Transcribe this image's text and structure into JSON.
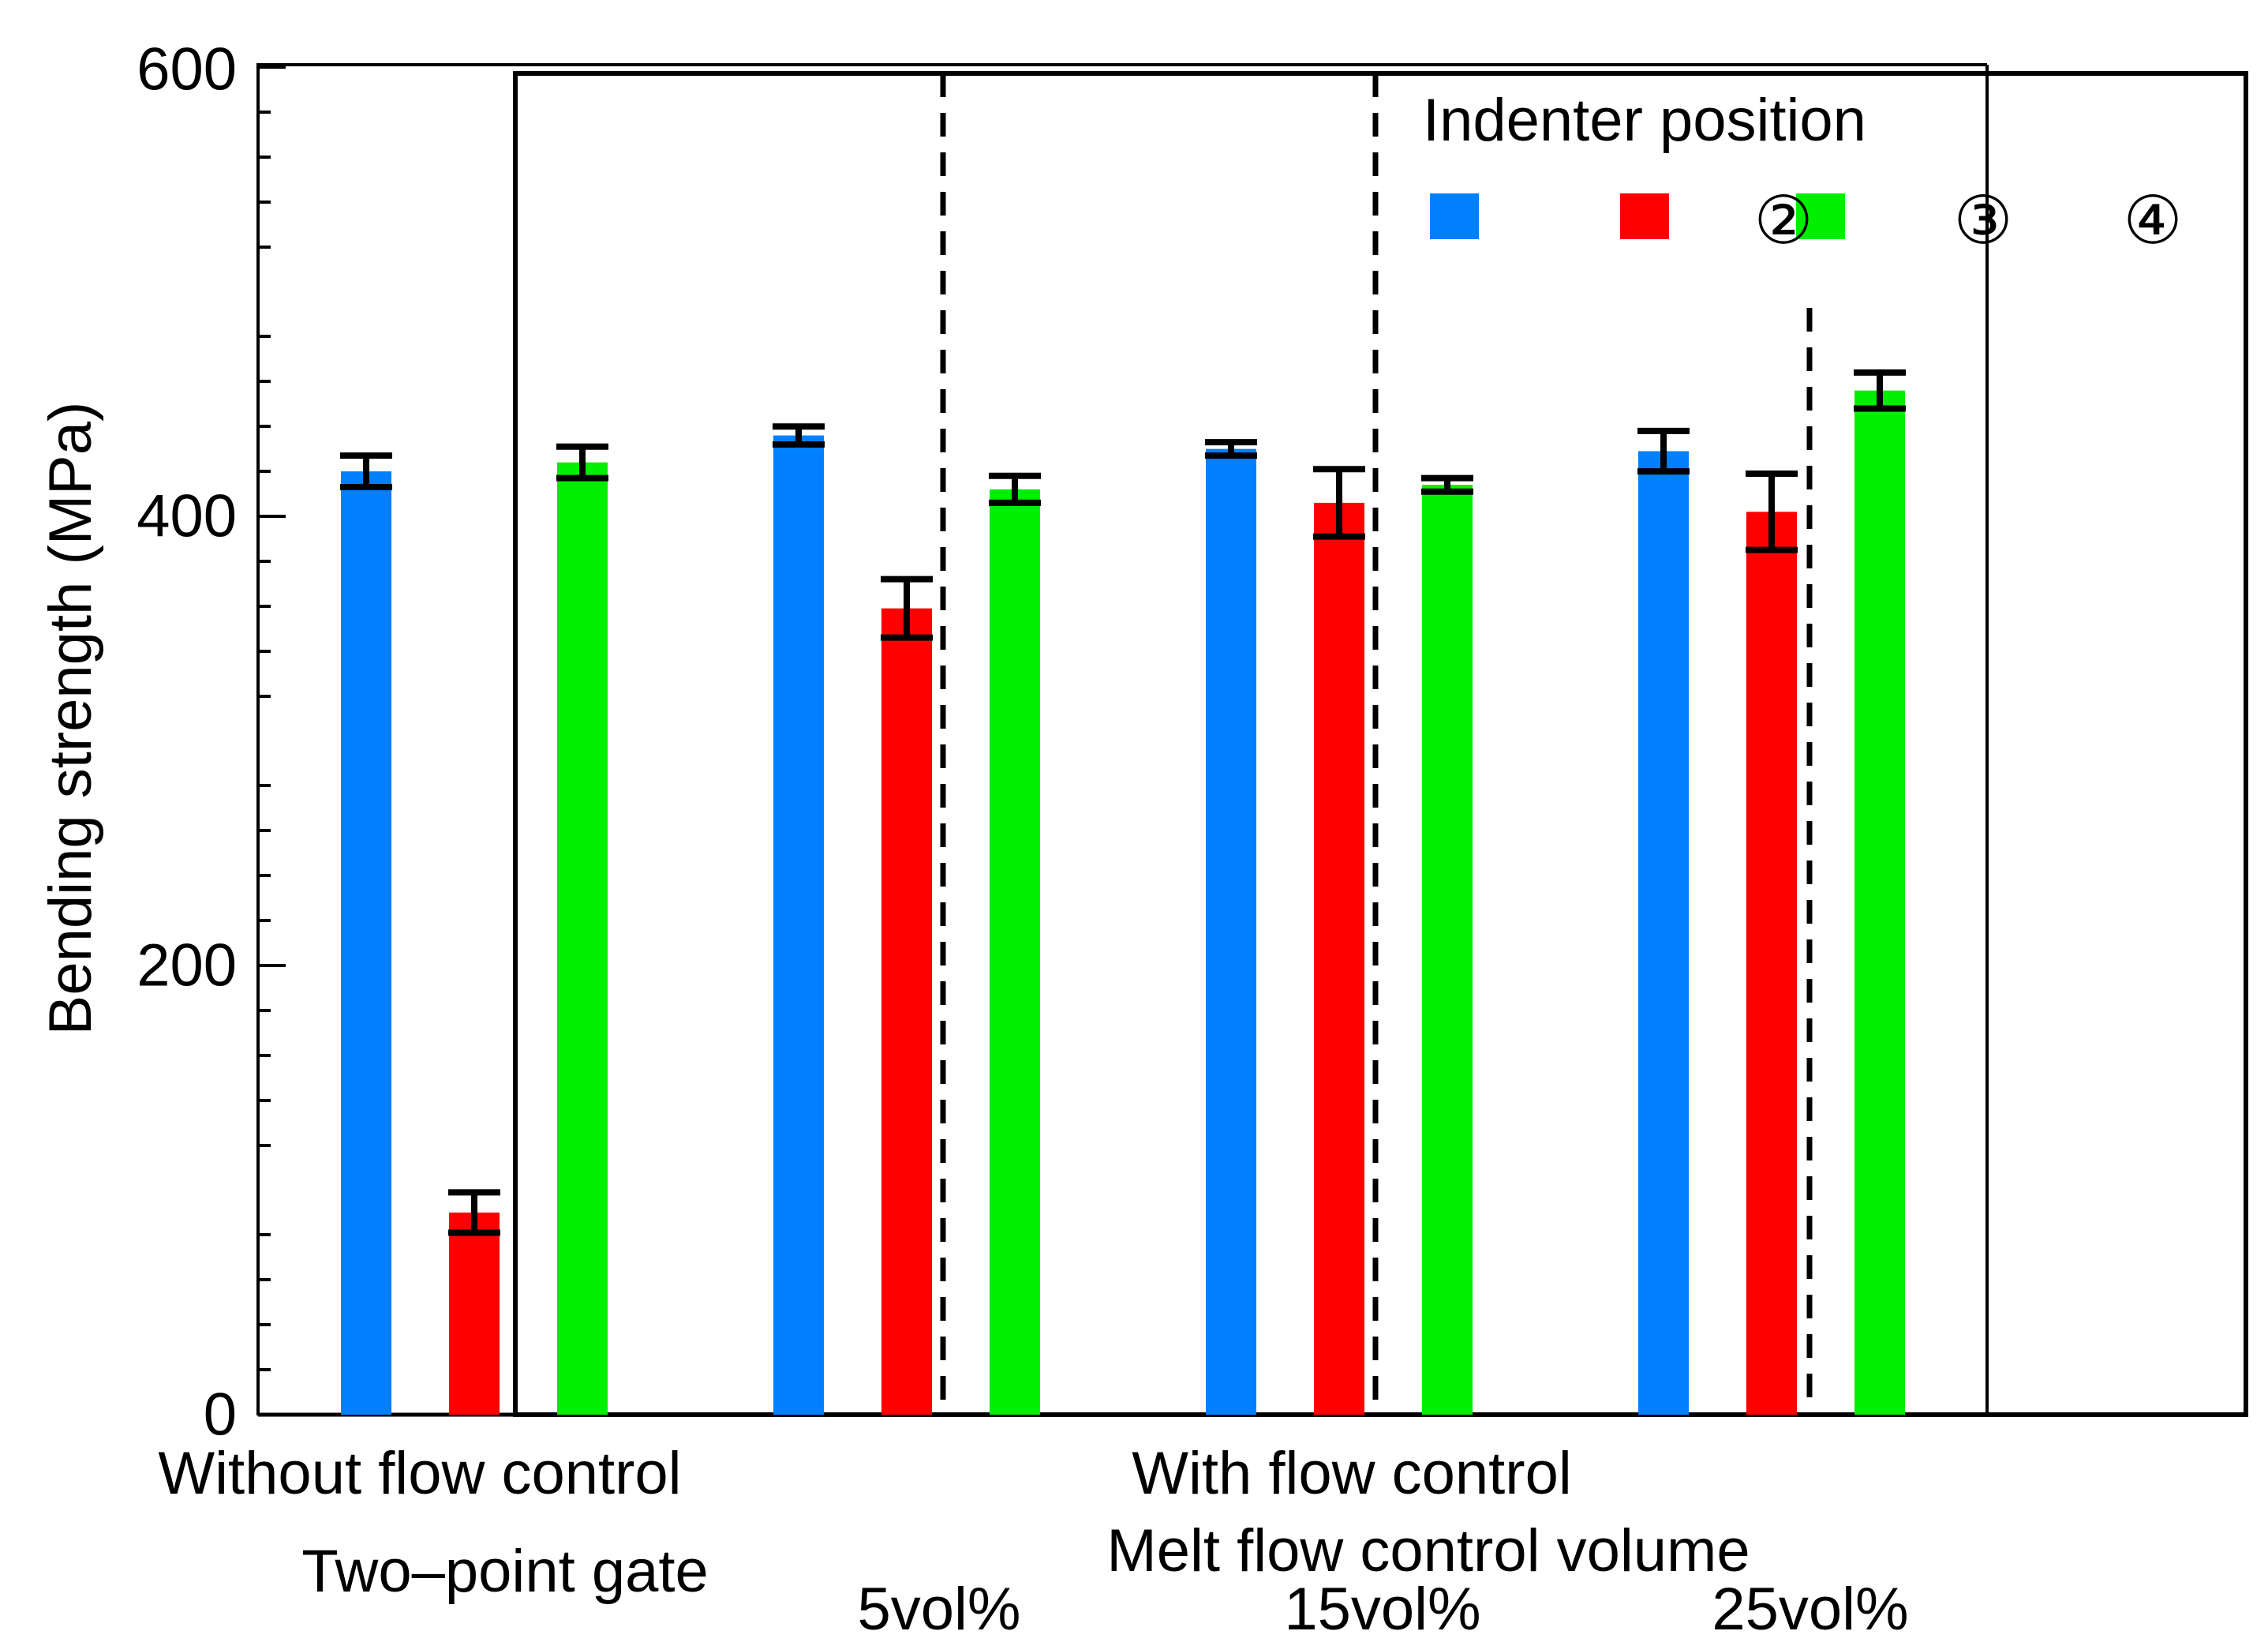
{
  "chart_data": {
    "type": "bar",
    "ylabel": "Bending strength (MPa)",
    "ylim": [
      0,
      600
    ],
    "yticks": [
      "0",
      "200",
      "400",
      "600"
    ],
    "legend": {
      "title": "Indenter position",
      "placement": "top-right",
      "markers": [
        "②",
        "③",
        "④"
      ]
    },
    "series": [
      {
        "name": "②",
        "color": "#0080ff"
      },
      {
        "name": "③",
        "color": "#ff0000"
      },
      {
        "name": "④",
        "color": "#00ee00"
      }
    ],
    "groups": [
      {
        "values": [
          420,
          90,
          424
        ],
        "errors": [
          7,
          9,
          7
        ]
      },
      {
        "values": [
          436,
          359,
          412
        ],
        "errors": [
          4,
          13,
          6
        ]
      },
      {
        "values": [
          430,
          406,
          414
        ],
        "errors": [
          3,
          15,
          3
        ]
      },
      {
        "values": [
          429,
          402,
          456
        ],
        "errors": [
          9,
          17,
          8
        ]
      }
    ],
    "bottom_labels": {
      "without_flow_control": "Without flow control",
      "two_point_gate": "Two–point gate",
      "with_flow_control": "With flow control",
      "melt_flow_control_volume": "Melt flow control volume",
      "vol_5": "5vol%",
      "vol_15": "15vol%",
      "vol_25": "25vol%"
    }
  }
}
